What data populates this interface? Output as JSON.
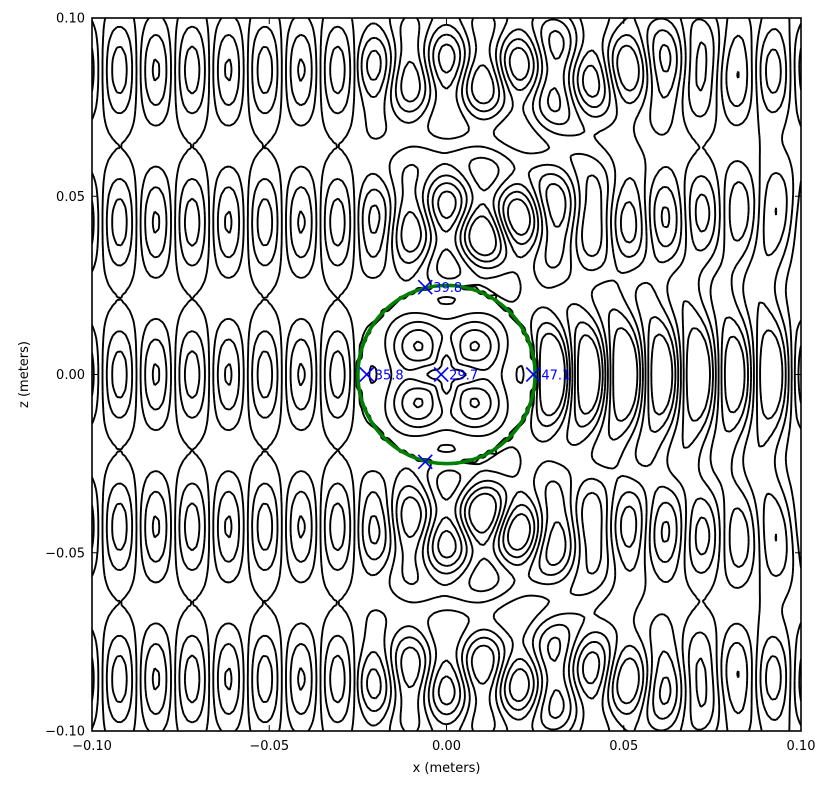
{
  "chart_data": {
    "type": "contour",
    "xlabel": "x (meters)",
    "ylabel": "z (meters)",
    "xlim": [
      -0.1,
      0.1
    ],
    "ylim": [
      -0.1,
      0.1
    ],
    "x_ticks": [
      -0.1,
      -0.05,
      0.0,
      0.05,
      0.1
    ],
    "x_tick_labels": [
      "−0.10",
      "−0.05",
      "0.00",
      "0.05",
      "0.10"
    ],
    "y_ticks": [
      -0.1,
      -0.05,
      0.0,
      0.05,
      0.1
    ],
    "y_tick_labels": [
      "−0.10",
      "−0.05",
      "0.00",
      "0.05",
      "0.10"
    ],
    "grid": false,
    "contour_style": {
      "positive": "solid",
      "negative": "dashed",
      "color": "#000000"
    },
    "circle": {
      "center": [
        0.0,
        0.0
      ],
      "radius": 0.025,
      "color": "#008000"
    },
    "markers": [
      {
        "x": -0.006,
        "z": 0.0245,
        "label": "39.8"
      },
      {
        "x": -0.0225,
        "z": 0.0,
        "label": "35.8"
      },
      {
        "x": -0.0015,
        "z": 0.0,
        "label": "29.7"
      },
      {
        "x": 0.0245,
        "z": 0.0,
        "label": "47.1"
      },
      {
        "x": -0.006,
        "z": -0.0245,
        "label": ""
      }
    ],
    "marker_color": "#0000ff"
  }
}
